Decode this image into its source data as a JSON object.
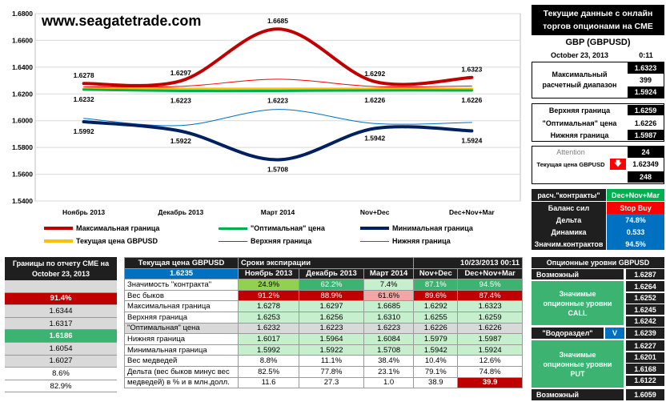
{
  "site": {
    "title": "www.seagatetrade.com"
  },
  "chart_data": {
    "type": "line",
    "categories": [
      "Ноябрь  2013",
      "Декабрь 2013",
      "Март 2014",
      "Nov+Dec",
      "Dec+Nov+Mar"
    ],
    "ylim": [
      1.54,
      1.68
    ],
    "yticks": [
      "1.5400",
      "1.5600",
      "1.5800",
      "1.6000",
      "1.6200",
      "1.6400",
      "1.6600",
      "1.6800"
    ],
    "series": [
      {
        "name": "Максимальная граница",
        "color": "#c00000",
        "values": [
          1.6278,
          1.6297,
          1.6685,
          1.6292,
          1.6323
        ],
        "labels": [
          "1.6278",
          "1.6297",
          "1.6685",
          "1.6292",
          "1.6323"
        ],
        "width": 4
      },
      {
        "name": "\"Оптимальная\" цена",
        "color": "#00b050",
        "values": [
          1.6232,
          1.6223,
          1.6223,
          1.6226,
          1.6226
        ],
        "labels": [
          "1.6232",
          "1.6223",
          "1.6223",
          "1.6226",
          "1.6226"
        ],
        "width": 3
      },
      {
        "name": "Минимальная граница",
        "color": "#002060",
        "values": [
          1.5992,
          1.5922,
          1.5708,
          1.5942,
          1.5924
        ],
        "labels": [
          "1.5992",
          "1.5922",
          "1.5708",
          "1.5942",
          "1.5924"
        ],
        "width": 4
      },
      {
        "name": "Текущая цена GBPUSD",
        "color": "#ffc000",
        "values": [
          1.6235,
          1.6235,
          1.6235,
          1.6235,
          1.6235
        ],
        "width": 4
      },
      {
        "name": "Верхняя граница",
        "color": "#ff0000",
        "values": [
          1.6253,
          1.6256,
          1.631,
          1.6255,
          1.6259
        ],
        "width": 1
      },
      {
        "name": "Нижняя граница",
        "color": "#0070c0",
        "values": [
          1.6017,
          1.5964,
          1.6084,
          1.5979,
          1.5987
        ],
        "width": 1
      }
    ]
  },
  "panel": {
    "title1": "Текущие данные с онлайн",
    "title2": "торгов опционами на CME",
    "pair": "GBP (GBPUSD)",
    "date": "October 23, 2013",
    "time": "0:11",
    "max_range_label1": "Максимальный",
    "max_range_label2": "расчетный диапазон",
    "max_range_top": "1.6323",
    "max_range_mid": "399",
    "max_range_bot": "1.5924",
    "upper_label": "Верхняя граница",
    "upper_val": "1.6259",
    "opt_label": "\"Оптимальная\" цена",
    "opt_val": "1.6226",
    "lower_label": "Нижняя граница",
    "lower_val": "1.5987",
    "attention_label": "Attention",
    "attention_val": "24",
    "current_label": "Текущая цена GBPUSD",
    "current_val": "1.62349",
    "current_sub": "248",
    "calc_label": "расч.\"контракты\"",
    "calc_val": "Dec+Nov+Mar",
    "balance_label": "Баланс сил",
    "balance_val": "Stop Buy",
    "delta_label": "Дельта",
    "delta_val": "74.8%",
    "dyn_label": "Динамика",
    "dyn_val": "0.533",
    "sig_label": "Значим.контрактов",
    "sig_val": "94.5%"
  },
  "left_table": {
    "header": "Границы по отчету CME на October 23, 2013",
    "header1": "Границы по отчету CME на",
    "header2": "October 23, 2013",
    "values": [
      "",
      "91.4%",
      "1.6344",
      "1.6317",
      "1.6186",
      "1.6054",
      "1.6027",
      "8.6%",
      "82.9%"
    ]
  },
  "main_table": {
    "col0": "Текущая цена GBPUSD",
    "expiry_label": "Сроки экспирации",
    "expiry_date": "10/23/2013 00:11",
    "current_price": "1.6235",
    "cols": [
      "Ноябрь 2013",
      "Декабрь 2013",
      "Март 2014",
      "Nov+Dec",
      "Dec+Nov+Mar"
    ],
    "rows": [
      {
        "label": "Значимость \"контракта\"",
        "values": [
          "24.9%",
          "62.2%",
          "7.4%",
          "87.1%",
          "94.5%"
        ]
      },
      {
        "label": "Вес быков",
        "values": [
          "91.2%",
          "88.9%",
          "61.6%",
          "89.6%",
          "87.4%"
        ]
      },
      {
        "label": "Максимальная граница",
        "values": [
          "1.6278",
          "1.6297",
          "1.6685",
          "1.6292",
          "1.6323"
        ]
      },
      {
        "label": "Верхняя граница",
        "values": [
          "1.6253",
          "1.6256",
          "1.6310",
          "1.6255",
          "1.6259"
        ]
      },
      {
        "label": "\"Оптимальная\" цена",
        "values": [
          "1.6232",
          "1.6223",
          "1.6223",
          "1.6226",
          "1.6226"
        ]
      },
      {
        "label": "Нижняя граница",
        "values": [
          "1.6017",
          "1.5964",
          "1.6084",
          "1.5979",
          "1.5987"
        ]
      },
      {
        "label": "Минимальная граница",
        "values": [
          "1.5992",
          "1.5922",
          "1.5708",
          "1.5942",
          "1.5924"
        ]
      },
      {
        "label": "Вес медведей",
        "values": [
          "8.8%",
          "11.1%",
          "38.4%",
          "10.4%",
          "12.6%"
        ]
      },
      {
        "label": "Дельта (вес быков минус вес",
        "label2": "медведей) в % и в млн.долл.",
        "values": [
          "82.5%",
          "77.8%",
          "23.1%",
          "79.1%",
          "74.8%"
        ],
        "values2": [
          "11.6",
          "27.3",
          "1.0",
          "38.9",
          "39.9"
        ]
      }
    ]
  },
  "option_levels": {
    "title": "Опционные уровни GBPUSD",
    "possible_top": "Возможный",
    "possible_top_val": "1.6287",
    "call_label1": "Значимые",
    "call_label2": "опционные уровни",
    "call_label3": "CALL",
    "call_vals": [
      "1.6264",
      "1.6252",
      "1.6245",
      "1.6242"
    ],
    "watershed_label": "\"Водораздел\"",
    "watershed_mark": "V",
    "watershed_val": "1.6239",
    "put_label1": "Значимые",
    "put_label2": "опционные уровни",
    "put_label3": "PUT",
    "put_vals": [
      "1.6227",
      "1.6201",
      "1.6168",
      "1.6122"
    ],
    "possible_bot": "Возможный",
    "possible_bot_val": "1.6059"
  }
}
